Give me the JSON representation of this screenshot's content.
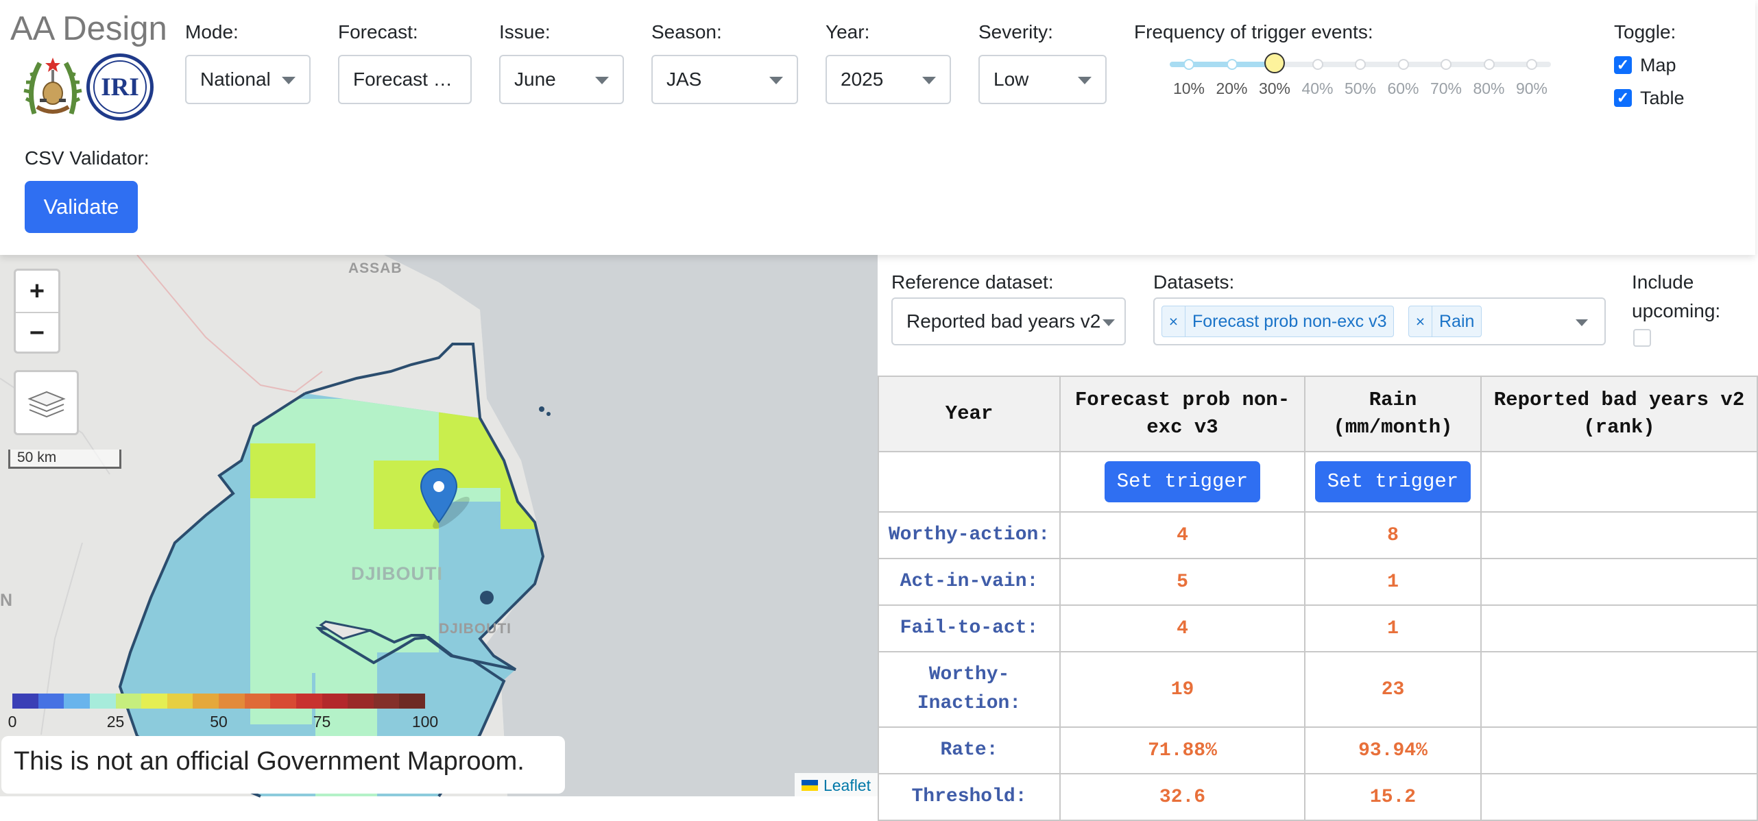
{
  "app": {
    "title": "AA Design"
  },
  "controls": {
    "mode": {
      "label": "Mode:",
      "value": "National"
    },
    "forecast": {
      "label": "Forecast:",
      "value": "Forecast …"
    },
    "issue": {
      "label": "Issue:",
      "value": "June"
    },
    "season": {
      "label": "Season:",
      "value": "JAS"
    },
    "year": {
      "label": "Year:",
      "value": "2025"
    },
    "severity": {
      "label": "Severity:",
      "value": "Low"
    },
    "frequency": {
      "label": "Frequency of trigger events:",
      "selected_value": 0.3,
      "ticks": [
        "10%",
        "20%",
        "30%",
        "40%",
        "50%",
        "60%",
        "70%",
        "80%",
        "90%"
      ]
    },
    "toggle": {
      "label": "Toggle:",
      "map": {
        "label": "Map",
        "checked": true
      },
      "table": {
        "label": "Table",
        "checked": true
      }
    },
    "csv": {
      "label": "CSV Validator:",
      "button": "Validate"
    }
  },
  "map": {
    "zoom_in": "+",
    "zoom_out": "−",
    "scale": "50 km",
    "labels": {
      "assab": "ASSAB",
      "djibouti_country": "DJIBOUTI",
      "djibouti_city": "DJIBOUTI",
      "edge_n": "N"
    },
    "colorbar": {
      "ticks": [
        "0",
        "25",
        "50",
        "75",
        "100"
      ],
      "colors": [
        "#3a3fb6",
        "#4672e3",
        "#69b4ec",
        "#a7ecdb",
        "#c6ee7d",
        "#e5ee52",
        "#e7cf42",
        "#e5a83a",
        "#e38a3a",
        "#df6b37",
        "#d84a33",
        "#c8322f",
        "#b3282b",
        "#9a2a28",
        "#842f2a",
        "#6e2a24"
      ]
    },
    "disclaimer": "This is not an official Government Maproom.",
    "attribution": "Leaflet"
  },
  "panel": {
    "reference": {
      "label": "Reference dataset:",
      "value": "Reported bad years v2"
    },
    "datasets": {
      "label": "Datasets:",
      "chips": [
        "Forecast prob non-exc v3",
        "Rain"
      ]
    },
    "include_upcoming": {
      "label_line1": "Include",
      "label_line2": "upcoming:",
      "checked": false
    },
    "table": {
      "columns": [
        "Year",
        "Forecast prob non-exc v3",
        "Rain (mm/month)",
        "Reported bad years v2 (rank)"
      ],
      "set_trigger": "Set trigger",
      "rows": [
        {
          "label": "Worthy-action:",
          "values": [
            "4",
            "8",
            ""
          ]
        },
        {
          "label": "Act-in-vain:",
          "values": [
            "5",
            "1",
            ""
          ]
        },
        {
          "label": "Fail-to-act:",
          "values": [
            "4",
            "1",
            ""
          ]
        },
        {
          "label": "Worthy-Inaction:",
          "values": [
            "19",
            "23",
            ""
          ]
        },
        {
          "label": "Rate:",
          "values": [
            "71.88%",
            "93.94%",
            ""
          ]
        },
        {
          "label": "Threshold:",
          "values": [
            "32.6",
            "15.2",
            ""
          ]
        }
      ]
    }
  }
}
